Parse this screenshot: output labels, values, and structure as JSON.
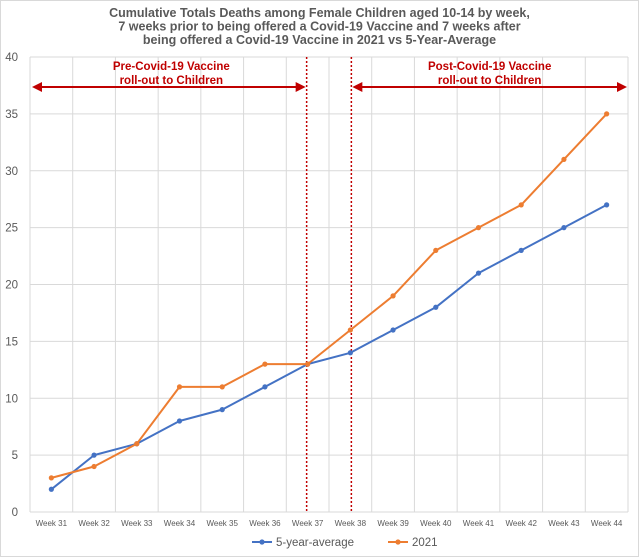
{
  "chart_data": {
    "type": "line",
    "title_lines": [
      "Cumulative Totals Deaths among Female Children aged 10-14 by week,",
      "7 weeks prior to being offered a Covid-19 Vaccine and 7 weeks after",
      "being offered a Covid-19 Vaccine in 2021 vs 5-Year-Average"
    ],
    "categories": [
      "Week 31",
      "Week 32",
      "Week 33",
      "Week 34",
      "Week 35",
      "Week 36",
      "Week 37",
      "Week 38",
      "Week 39",
      "Week 40",
      "Week 41",
      "Week 42",
      "Week 43",
      "Week 44"
    ],
    "ylim": [
      0,
      40
    ],
    "yticks": [
      "0",
      "5",
      "10",
      "15",
      "20",
      "25",
      "30",
      "35",
      "40"
    ],
    "grid": true,
    "legend_position": "bottom",
    "series": [
      {
        "name": "5-year-average",
        "color": "#4472c4",
        "values": [
          2,
          5,
          6,
          8,
          9,
          11,
          13,
          14,
          16,
          18,
          21,
          23,
          25,
          27
        ]
      },
      {
        "name": "2021",
        "color": "#ed7d31",
        "values": [
          3,
          4,
          6,
          11,
          11,
          13,
          13,
          16,
          19,
          23,
          25,
          27,
          31,
          35
        ]
      }
    ],
    "annotations": {
      "color": "#c00000",
      "pre_label": [
        "Pre-Covid-19 Vaccine",
        "roll-out to Children"
      ],
      "post_label": [
        "Post-Covid-19 Vaccine",
        "roll-out to Children"
      ]
    }
  }
}
